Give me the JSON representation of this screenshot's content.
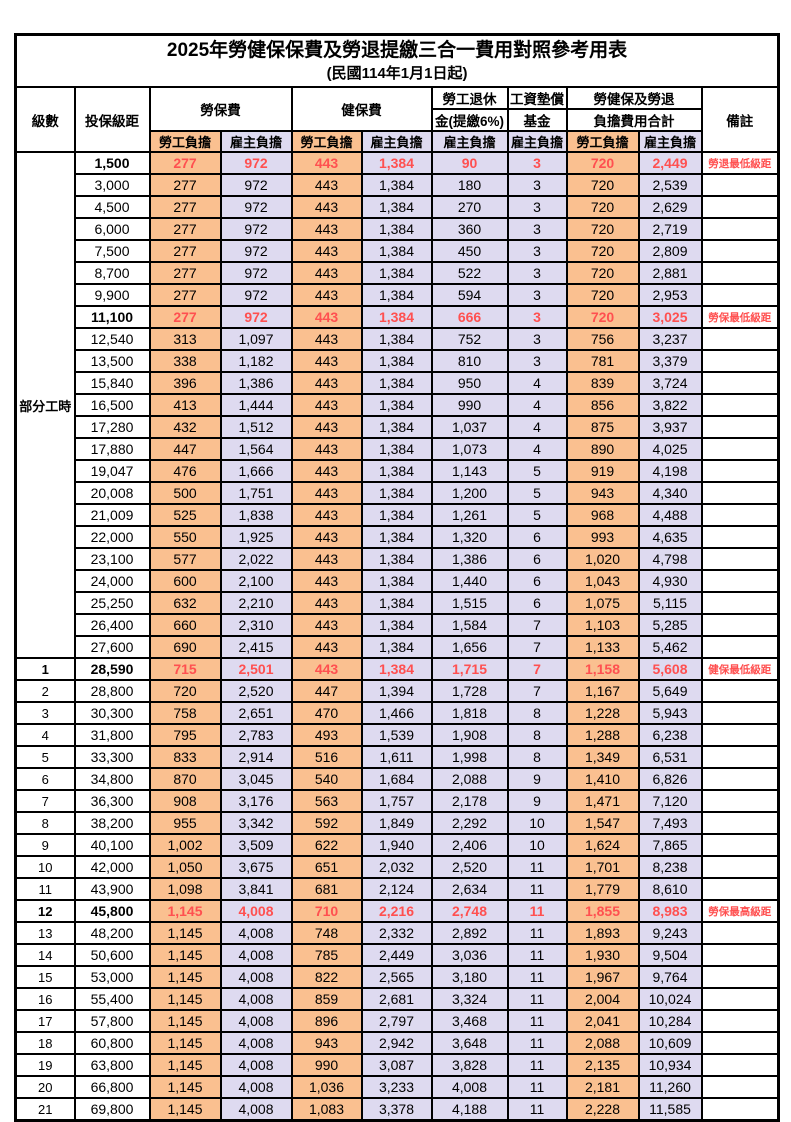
{
  "title": "2025年勞健保保費及勞退提繳三合一費用對照參考用表",
  "subtitle": "(民國114年1月1日起)",
  "colors": {
    "employee_bg": "#FAC090",
    "employer_bg": "#DEDAF0",
    "highlight_text": "#FF5050",
    "border": "#000000"
  },
  "header": {
    "level": "級數",
    "salary_bracket": "投保級距",
    "labor_insurance": "勞保費",
    "health_insurance": "健保費",
    "pension_line1": "勞工退休",
    "pension_line2": "金(提繳6%)",
    "wage_fund_line1": "工資墊償",
    "wage_fund_line2": "基金",
    "total_line1": "勞健保及勞退",
    "total_line2": "負擔費用合計",
    "employee": "勞工負擔",
    "employer": "雇主負擔",
    "remarks": "備註"
  },
  "part_time_label": "部分工時",
  "part_time_rows": 23,
  "rows": [
    {
      "level": "",
      "salary": "1,500",
      "li_emp": "277",
      "li_er": "972",
      "hi_emp": "443",
      "hi_er": "1,384",
      "pension": "90",
      "fund": "3",
      "tot_emp": "720",
      "tot_er": "2,449",
      "remark": "勞退最低級距",
      "highlight": true
    },
    {
      "level": "",
      "salary": "3,000",
      "li_emp": "277",
      "li_er": "972",
      "hi_emp": "443",
      "hi_er": "1,384",
      "pension": "180",
      "fund": "3",
      "tot_emp": "720",
      "tot_er": "2,539",
      "remark": "",
      "highlight": false
    },
    {
      "level": "",
      "salary": "4,500",
      "li_emp": "277",
      "li_er": "972",
      "hi_emp": "443",
      "hi_er": "1,384",
      "pension": "270",
      "fund": "3",
      "tot_emp": "720",
      "tot_er": "2,629",
      "remark": "",
      "highlight": false
    },
    {
      "level": "",
      "salary": "6,000",
      "li_emp": "277",
      "li_er": "972",
      "hi_emp": "443",
      "hi_er": "1,384",
      "pension": "360",
      "fund": "3",
      "tot_emp": "720",
      "tot_er": "2,719",
      "remark": "",
      "highlight": false
    },
    {
      "level": "",
      "salary": "7,500",
      "li_emp": "277",
      "li_er": "972",
      "hi_emp": "443",
      "hi_er": "1,384",
      "pension": "450",
      "fund": "3",
      "tot_emp": "720",
      "tot_er": "2,809",
      "remark": "",
      "highlight": false
    },
    {
      "level": "",
      "salary": "8,700",
      "li_emp": "277",
      "li_er": "972",
      "hi_emp": "443",
      "hi_er": "1,384",
      "pension": "522",
      "fund": "3",
      "tot_emp": "720",
      "tot_er": "2,881",
      "remark": "",
      "highlight": false
    },
    {
      "level": "",
      "salary": "9,900",
      "li_emp": "277",
      "li_er": "972",
      "hi_emp": "443",
      "hi_er": "1,384",
      "pension": "594",
      "fund": "3",
      "tot_emp": "720",
      "tot_er": "2,953",
      "remark": "",
      "highlight": false
    },
    {
      "level": "",
      "salary": "11,100",
      "li_emp": "277",
      "li_er": "972",
      "hi_emp": "443",
      "hi_er": "1,384",
      "pension": "666",
      "fund": "3",
      "tot_emp": "720",
      "tot_er": "3,025",
      "remark": "勞保最低級距",
      "highlight": true
    },
    {
      "level": "",
      "salary": "12,540",
      "li_emp": "313",
      "li_er": "1,097",
      "hi_emp": "443",
      "hi_er": "1,384",
      "pension": "752",
      "fund": "3",
      "tot_emp": "756",
      "tot_er": "3,237",
      "remark": "",
      "highlight": false
    },
    {
      "level": "",
      "salary": "13,500",
      "li_emp": "338",
      "li_er": "1,182",
      "hi_emp": "443",
      "hi_er": "1,384",
      "pension": "810",
      "fund": "3",
      "tot_emp": "781",
      "tot_er": "3,379",
      "remark": "",
      "highlight": false
    },
    {
      "level": "",
      "salary": "15,840",
      "li_emp": "396",
      "li_er": "1,386",
      "hi_emp": "443",
      "hi_er": "1,384",
      "pension": "950",
      "fund": "4",
      "tot_emp": "839",
      "tot_er": "3,724",
      "remark": "",
      "highlight": false
    },
    {
      "level": "",
      "salary": "16,500",
      "li_emp": "413",
      "li_er": "1,444",
      "hi_emp": "443",
      "hi_er": "1,384",
      "pension": "990",
      "fund": "4",
      "tot_emp": "856",
      "tot_er": "3,822",
      "remark": "",
      "highlight": false
    },
    {
      "level": "",
      "salary": "17,280",
      "li_emp": "432",
      "li_er": "1,512",
      "hi_emp": "443",
      "hi_er": "1,384",
      "pension": "1,037",
      "fund": "4",
      "tot_emp": "875",
      "tot_er": "3,937",
      "remark": "",
      "highlight": false
    },
    {
      "level": "",
      "salary": "17,880",
      "li_emp": "447",
      "li_er": "1,564",
      "hi_emp": "443",
      "hi_er": "1,384",
      "pension": "1,073",
      "fund": "4",
      "tot_emp": "890",
      "tot_er": "4,025",
      "remark": "",
      "highlight": false
    },
    {
      "level": "",
      "salary": "19,047",
      "li_emp": "476",
      "li_er": "1,666",
      "hi_emp": "443",
      "hi_er": "1,384",
      "pension": "1,143",
      "fund": "5",
      "tot_emp": "919",
      "tot_er": "4,198",
      "remark": "",
      "highlight": false
    },
    {
      "level": "",
      "salary": "20,008",
      "li_emp": "500",
      "li_er": "1,751",
      "hi_emp": "443",
      "hi_er": "1,384",
      "pension": "1,200",
      "fund": "5",
      "tot_emp": "943",
      "tot_er": "4,340",
      "remark": "",
      "highlight": false
    },
    {
      "level": "",
      "salary": "21,009",
      "li_emp": "525",
      "li_er": "1,838",
      "hi_emp": "443",
      "hi_er": "1,384",
      "pension": "1,261",
      "fund": "5",
      "tot_emp": "968",
      "tot_er": "4,488",
      "remark": "",
      "highlight": false
    },
    {
      "level": "",
      "salary": "22,000",
      "li_emp": "550",
      "li_er": "1,925",
      "hi_emp": "443",
      "hi_er": "1,384",
      "pension": "1,320",
      "fund": "6",
      "tot_emp": "993",
      "tot_er": "4,635",
      "remark": "",
      "highlight": false
    },
    {
      "level": "",
      "salary": "23,100",
      "li_emp": "577",
      "li_er": "2,022",
      "hi_emp": "443",
      "hi_er": "1,384",
      "pension": "1,386",
      "fund": "6",
      "tot_emp": "1,020",
      "tot_er": "4,798",
      "remark": "",
      "highlight": false
    },
    {
      "level": "",
      "salary": "24,000",
      "li_emp": "600",
      "li_er": "2,100",
      "hi_emp": "443",
      "hi_er": "1,384",
      "pension": "1,440",
      "fund": "6",
      "tot_emp": "1,043",
      "tot_er": "4,930",
      "remark": "",
      "highlight": false
    },
    {
      "level": "",
      "salary": "25,250",
      "li_emp": "632",
      "li_er": "2,210",
      "hi_emp": "443",
      "hi_er": "1,384",
      "pension": "1,515",
      "fund": "6",
      "tot_emp": "1,075",
      "tot_er": "5,115",
      "remark": "",
      "highlight": false
    },
    {
      "level": "",
      "salary": "26,400",
      "li_emp": "660",
      "li_er": "2,310",
      "hi_emp": "443",
      "hi_er": "1,384",
      "pension": "1,584",
      "fund": "7",
      "tot_emp": "1,103",
      "tot_er": "5,285",
      "remark": "",
      "highlight": false
    },
    {
      "level": "",
      "salary": "27,600",
      "li_emp": "690",
      "li_er": "2,415",
      "hi_emp": "443",
      "hi_er": "1,384",
      "pension": "1,656",
      "fund": "7",
      "tot_emp": "1,133",
      "tot_er": "5,462",
      "remark": "",
      "highlight": false
    },
    {
      "level": "1",
      "salary": "28,590",
      "li_emp": "715",
      "li_er": "2,501",
      "hi_emp": "443",
      "hi_er": "1,384",
      "pension": "1,715",
      "fund": "7",
      "tot_emp": "1,158",
      "tot_er": "5,608",
      "remark": "健保最低級距",
      "highlight": true
    },
    {
      "level": "2",
      "salary": "28,800",
      "li_emp": "720",
      "li_er": "2,520",
      "hi_emp": "447",
      "hi_er": "1,394",
      "pension": "1,728",
      "fund": "7",
      "tot_emp": "1,167",
      "tot_er": "5,649",
      "remark": "",
      "highlight": false
    },
    {
      "level": "3",
      "salary": "30,300",
      "li_emp": "758",
      "li_er": "2,651",
      "hi_emp": "470",
      "hi_er": "1,466",
      "pension": "1,818",
      "fund": "8",
      "tot_emp": "1,228",
      "tot_er": "5,943",
      "remark": "",
      "highlight": false
    },
    {
      "level": "4",
      "salary": "31,800",
      "li_emp": "795",
      "li_er": "2,783",
      "hi_emp": "493",
      "hi_er": "1,539",
      "pension": "1,908",
      "fund": "8",
      "tot_emp": "1,288",
      "tot_er": "6,238",
      "remark": "",
      "highlight": false
    },
    {
      "level": "5",
      "salary": "33,300",
      "li_emp": "833",
      "li_er": "2,914",
      "hi_emp": "516",
      "hi_er": "1,611",
      "pension": "1,998",
      "fund": "8",
      "tot_emp": "1,349",
      "tot_er": "6,531",
      "remark": "",
      "highlight": false
    },
    {
      "level": "6",
      "salary": "34,800",
      "li_emp": "870",
      "li_er": "3,045",
      "hi_emp": "540",
      "hi_er": "1,684",
      "pension": "2,088",
      "fund": "9",
      "tot_emp": "1,410",
      "tot_er": "6,826",
      "remark": "",
      "highlight": false
    },
    {
      "level": "7",
      "salary": "36,300",
      "li_emp": "908",
      "li_er": "3,176",
      "hi_emp": "563",
      "hi_er": "1,757",
      "pension": "2,178",
      "fund": "9",
      "tot_emp": "1,471",
      "tot_er": "7,120",
      "remark": "",
      "highlight": false
    },
    {
      "level": "8",
      "salary": "38,200",
      "li_emp": "955",
      "li_er": "3,342",
      "hi_emp": "592",
      "hi_er": "1,849",
      "pension": "2,292",
      "fund": "10",
      "tot_emp": "1,547",
      "tot_er": "7,493",
      "remark": "",
      "highlight": false
    },
    {
      "level": "9",
      "salary": "40,100",
      "li_emp": "1,002",
      "li_er": "3,509",
      "hi_emp": "622",
      "hi_er": "1,940",
      "pension": "2,406",
      "fund": "10",
      "tot_emp": "1,624",
      "tot_er": "7,865",
      "remark": "",
      "highlight": false
    },
    {
      "level": "10",
      "salary": "42,000",
      "li_emp": "1,050",
      "li_er": "3,675",
      "hi_emp": "651",
      "hi_er": "2,032",
      "pension": "2,520",
      "fund": "11",
      "tot_emp": "1,701",
      "tot_er": "8,238",
      "remark": "",
      "highlight": false
    },
    {
      "level": "11",
      "salary": "43,900",
      "li_emp": "1,098",
      "li_er": "3,841",
      "hi_emp": "681",
      "hi_er": "2,124",
      "pension": "2,634",
      "fund": "11",
      "tot_emp": "1,779",
      "tot_er": "8,610",
      "remark": "",
      "highlight": false
    },
    {
      "level": "12",
      "salary": "45,800",
      "li_emp": "1,145",
      "li_er": "4,008",
      "hi_emp": "710",
      "hi_er": "2,216",
      "pension": "2,748",
      "fund": "11",
      "tot_emp": "1,855",
      "tot_er": "8,983",
      "remark": "勞保最高級距",
      "highlight": true
    },
    {
      "level": "13",
      "salary": "48,200",
      "li_emp": "1,145",
      "li_er": "4,008",
      "hi_emp": "748",
      "hi_er": "2,332",
      "pension": "2,892",
      "fund": "11",
      "tot_emp": "1,893",
      "tot_er": "9,243",
      "remark": "",
      "highlight": false
    },
    {
      "level": "14",
      "salary": "50,600",
      "li_emp": "1,145",
      "li_er": "4,008",
      "hi_emp": "785",
      "hi_er": "2,449",
      "pension": "3,036",
      "fund": "11",
      "tot_emp": "1,930",
      "tot_er": "9,504",
      "remark": "",
      "highlight": false
    },
    {
      "level": "15",
      "salary": "53,000",
      "li_emp": "1,145",
      "li_er": "4,008",
      "hi_emp": "822",
      "hi_er": "2,565",
      "pension": "3,180",
      "fund": "11",
      "tot_emp": "1,967",
      "tot_er": "9,764",
      "remark": "",
      "highlight": false
    },
    {
      "level": "16",
      "salary": "55,400",
      "li_emp": "1,145",
      "li_er": "4,008",
      "hi_emp": "859",
      "hi_er": "2,681",
      "pension": "3,324",
      "fund": "11",
      "tot_emp": "2,004",
      "tot_er": "10,024",
      "remark": "",
      "highlight": false
    },
    {
      "level": "17",
      "salary": "57,800",
      "li_emp": "1,145",
      "li_er": "4,008",
      "hi_emp": "896",
      "hi_er": "2,797",
      "pension": "3,468",
      "fund": "11",
      "tot_emp": "2,041",
      "tot_er": "10,284",
      "remark": "",
      "highlight": false
    },
    {
      "level": "18",
      "salary": "60,800",
      "li_emp": "1,145",
      "li_er": "4,008",
      "hi_emp": "943",
      "hi_er": "2,942",
      "pension": "3,648",
      "fund": "11",
      "tot_emp": "2,088",
      "tot_er": "10,609",
      "remark": "",
      "highlight": false
    },
    {
      "level": "19",
      "salary": "63,800",
      "li_emp": "1,145",
      "li_er": "4,008",
      "hi_emp": "990",
      "hi_er": "3,087",
      "pension": "3,828",
      "fund": "11",
      "tot_emp": "2,135",
      "tot_er": "10,934",
      "remark": "",
      "highlight": false
    },
    {
      "level": "20",
      "salary": "66,800",
      "li_emp": "1,145",
      "li_er": "4,008",
      "hi_emp": "1,036",
      "hi_er": "3,233",
      "pension": "4,008",
      "fund": "11",
      "tot_emp": "2,181",
      "tot_er": "11,260",
      "remark": "",
      "highlight": false
    },
    {
      "level": "21",
      "salary": "69,800",
      "li_emp": "1,145",
      "li_er": "4,008",
      "hi_emp": "1,083",
      "hi_er": "3,378",
      "pension": "4,188",
      "fund": "11",
      "tot_emp": "2,228",
      "tot_er": "11,585",
      "remark": "",
      "highlight": false
    }
  ]
}
